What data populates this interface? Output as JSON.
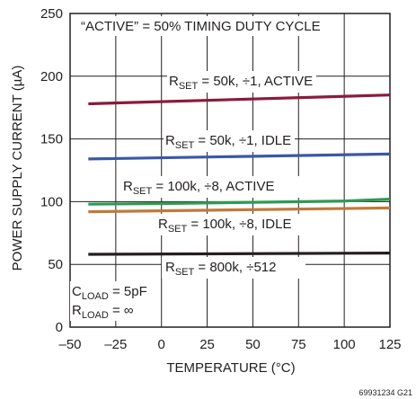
{
  "chart_data": {
    "type": "line",
    "title": "",
    "xlabel": "TEMPERATURE (°C)",
    "ylabel": "POWER SUPPLY CURRENT (µA)",
    "xlim": [
      -50,
      125
    ],
    "ylim": [
      0,
      250
    ],
    "xticks": [
      "–50",
      "–25",
      "0",
      "25",
      "50",
      "75",
      "100",
      "125"
    ],
    "yticks": [
      "0",
      "50",
      "100",
      "150",
      "200",
      "250"
    ],
    "grid": true,
    "series": [
      {
        "name": "RSET = 50k, ÷1, ACTIVE",
        "color": "#8b1a3c",
        "x": [
          -40,
          125
        ],
        "y": [
          178,
          185
        ]
      },
      {
        "name": "RSET = 50k, ÷1, IDLE",
        "color": "#3a58a8",
        "x": [
          -40,
          125
        ],
        "y": [
          134,
          138
        ]
      },
      {
        "name": "RSET = 100k, ÷8, ACTIVE",
        "color": "#2e9a54",
        "x": [
          -40,
          0,
          50,
          100,
          125
        ],
        "y": [
          98,
          98.5,
          99.5,
          100.5,
          102
        ]
      },
      {
        "name": "RSET = 100k, ÷8, IDLE",
        "color": "#c07a3a",
        "x": [
          -40,
          125
        ],
        "y": [
          92,
          95
        ]
      },
      {
        "name": "RSET = 800k, ÷512",
        "color": "#231f20",
        "x": [
          -40,
          125
        ],
        "y": [
          58,
          59
        ]
      }
    ],
    "annotations": {
      "header": "“ACTIVE” = 50% TIMING DUTY CYCLE",
      "s1": {
        "base": "R",
        "sub": "SET",
        "rest": " = 50k, ÷1, ACTIVE"
      },
      "s2": {
        "base": "R",
        "sub": "SET",
        "rest": " = 50k, ÷1, IDLE"
      },
      "s3": {
        "base": "R",
        "sub": "SET",
        "rest": " = 100k, ÷8, ACTIVE"
      },
      "s4": {
        "base": "R",
        "sub": "SET",
        "rest": " = 100k, ÷8, IDLE"
      },
      "s5": {
        "base": "R",
        "sub": "SET",
        "rest": " = 800k, ÷512"
      },
      "cload": {
        "base": "C",
        "sub": "LOAD",
        "rest": " = 5pF"
      },
      "rload": {
        "base": "R",
        "sub": "LOAD",
        "rest": " = ∞"
      }
    }
  },
  "figure_id": "69931234 G21"
}
